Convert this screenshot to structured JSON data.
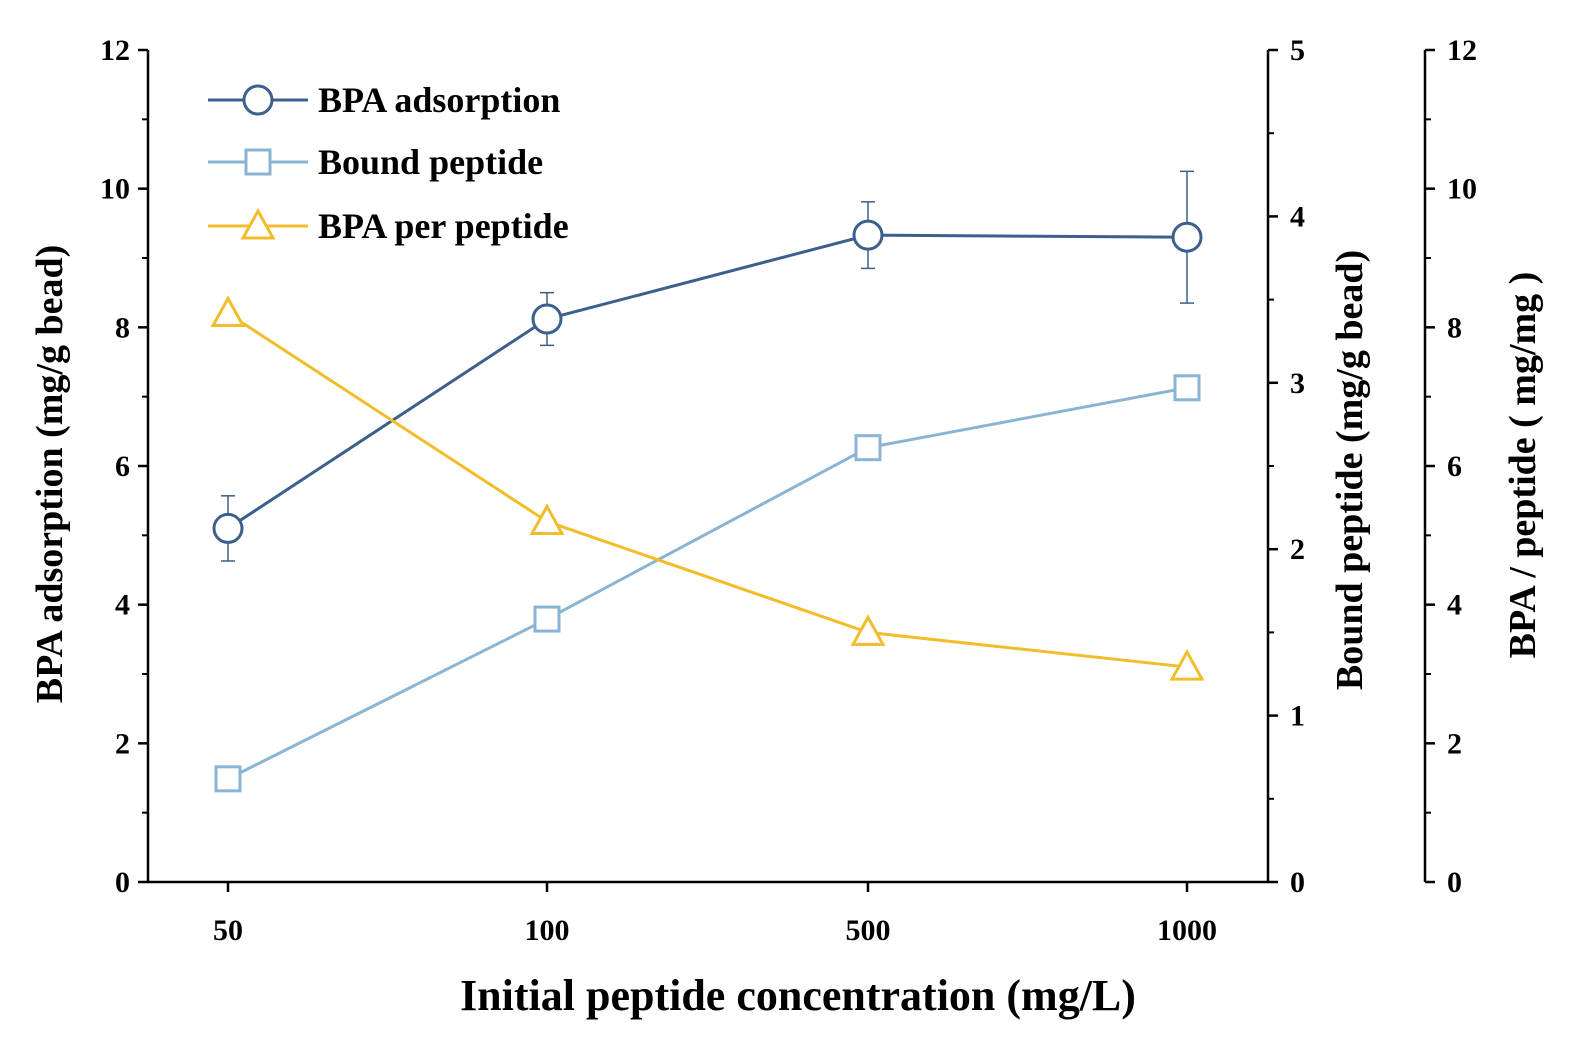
{
  "chart_data": {
    "type": "line",
    "title": "",
    "xlabel": "Initial peptide concentration (mg/L)",
    "categories": [
      "50",
      "100",
      "500",
      "1000"
    ],
    "axes": [
      {
        "id": "left",
        "label": "BPA adsorption (mg/g bead)",
        "range": [
          0,
          12
        ],
        "major_ticks": [
          0,
          2,
          4,
          6,
          8,
          10,
          12
        ]
      },
      {
        "id": "right1",
        "label": "Bound peptide  (mg/g bead)",
        "range": [
          0,
          5
        ],
        "major_ticks": [
          0,
          1,
          2,
          3,
          4,
          5
        ]
      },
      {
        "id": "right2",
        "label": "BPA / peptide  ( mg/mg )",
        "range": [
          0,
          12
        ],
        "major_ticks": [
          0,
          2,
          4,
          6,
          8,
          10,
          12
        ]
      }
    ],
    "series": [
      {
        "name": "BPA adsorption",
        "axis": "left",
        "marker": "circle",
        "color": "#3c5f8c",
        "values": [
          5.1,
          8.12,
          9.33,
          9.3
        ],
        "errors": [
          0.47,
          0.38,
          0.48,
          0.95
        ]
      },
      {
        "name": "Bound peptide",
        "axis": "right1",
        "marker": "square",
        "color": "#8ab4d4",
        "values": [
          0.62,
          1.58,
          2.61,
          2.97
        ]
      },
      {
        "name": "BPA per peptide",
        "axis": "right2",
        "marker": "triangle",
        "color": "#f2bd2a",
        "values": [
          8.2,
          5.2,
          3.6,
          3.1
        ]
      }
    ],
    "legend": {
      "position": "top-left"
    },
    "grid": false
  }
}
